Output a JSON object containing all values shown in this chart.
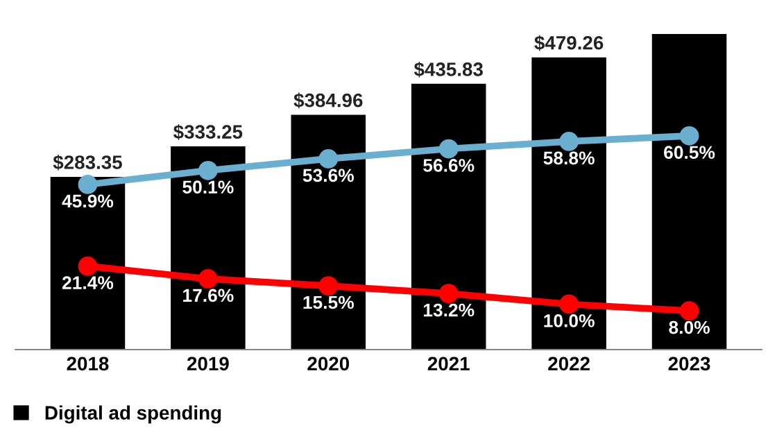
{
  "chart_data": {
    "type": "bar",
    "categories": [
      "2018",
      "2019",
      "2020",
      "2021",
      "2022",
      "2023"
    ],
    "tick_labels": "x",
    "grid": false,
    "legend": "bottom left",
    "marker": "circle",
    "line_style": "solid",
    "series": [
      {
        "name": "Digital ad spending",
        "color": "#000000",
        "values": [
          283.35,
          333.25,
          384.96,
          435.83,
          479.26,
          517.51
        ],
        "value_labels": [
          "$283.35",
          "$333.25",
          "$384.96",
          "$435.83",
          "$479.26",
          null
        ]
      },
      {
        "type": "line",
        "axis": "y2",
        "color": "#6aaed0",
        "values": [
          45.9,
          50.1,
          53.6,
          56.6,
          58.8,
          60.5
        ],
        "value_labels": [
          "45.9%",
          "50.1%",
          "53.6%",
          "56.6%",
          "58.8%",
          "60.5%"
        ]
      },
      {
        "type": "line",
        "axis": "y2",
        "color": "#ff0000",
        "values": [
          21.4,
          17.6,
          15.5,
          13.2,
          10.0,
          8.0
        ],
        "value_labels": [
          "21.4%",
          "17.6%",
          "15.5%",
          "13.2%",
          "10.0%",
          "8.0%"
        ]
      }
    ]
  }
}
